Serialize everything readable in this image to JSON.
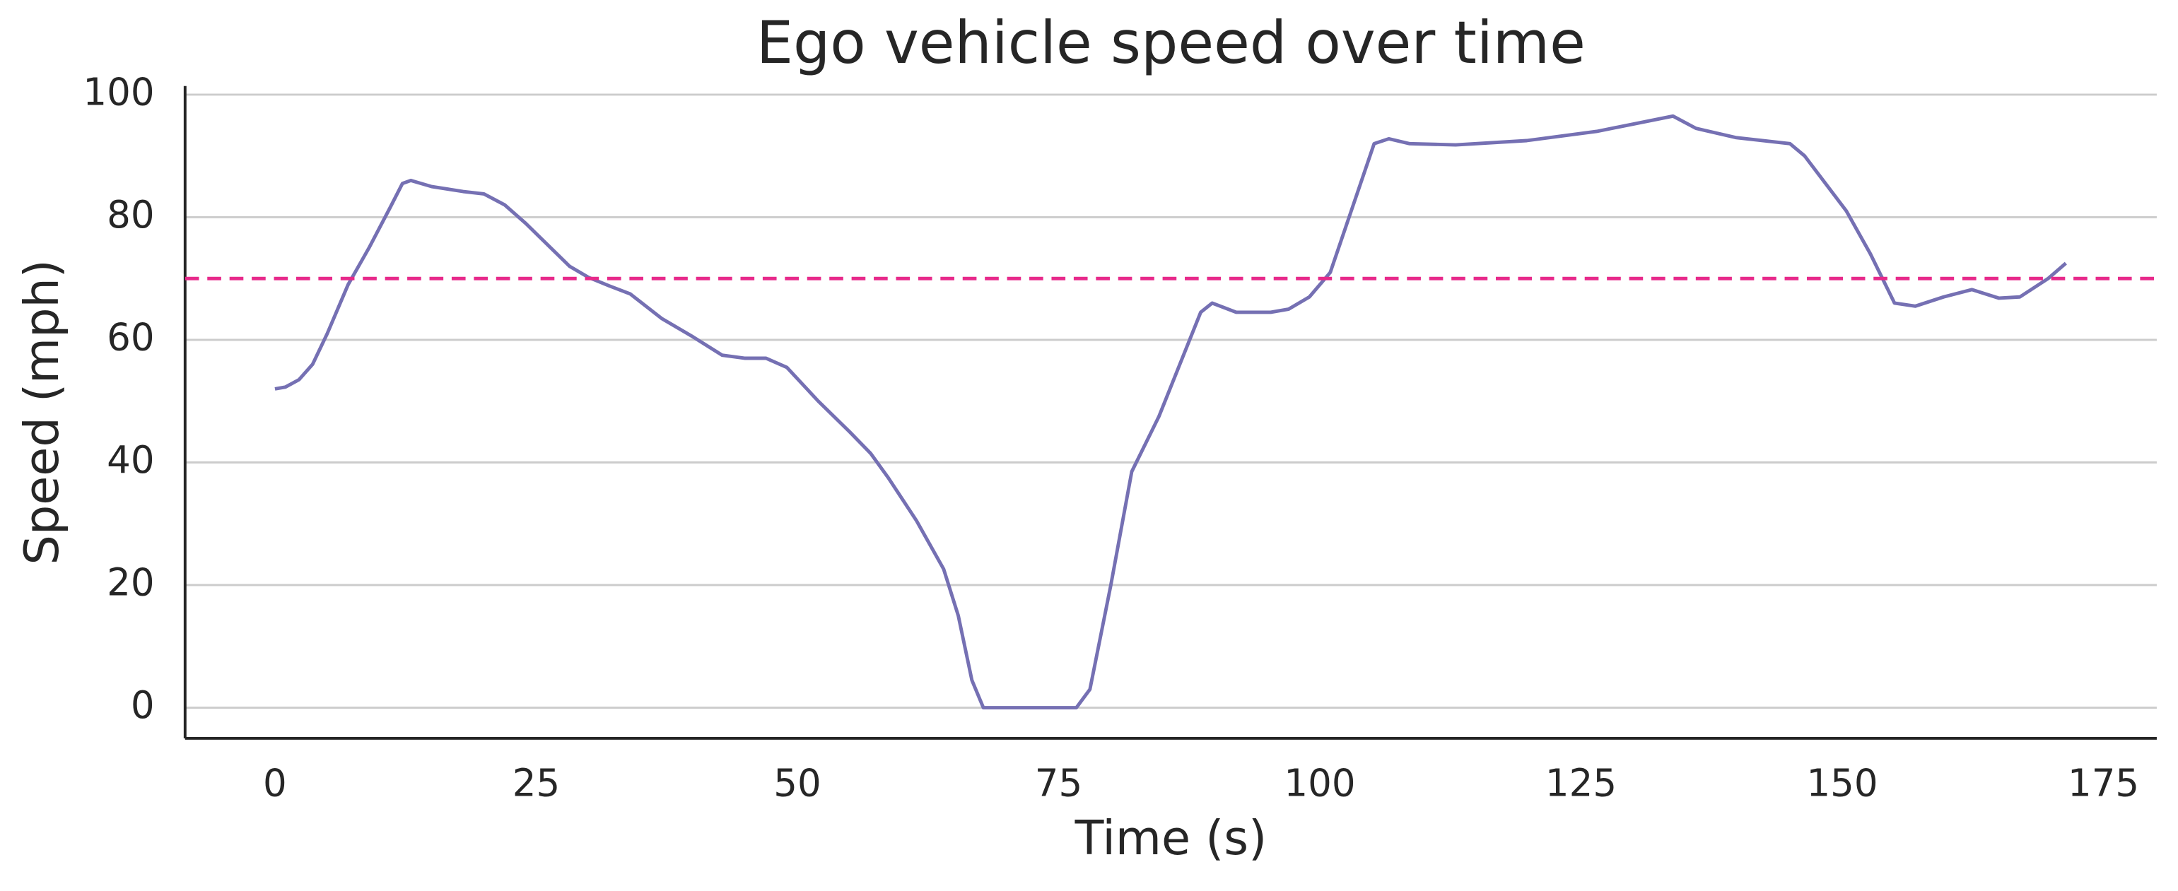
{
  "chart_data": {
    "type": "line",
    "title": "Ego vehicle speed over time",
    "xlabel": "Time (s)",
    "ylabel": "Speed (mph)",
    "x": [
      0,
      1,
      2.3,
      3.6,
      5,
      7,
      9,
      11,
      12.2,
      13,
      15,
      18,
      20,
      22,
      24,
      27,
      28.2,
      30,
      32,
      34,
      37,
      40,
      42.8,
      45,
      47,
      49,
      52,
      55,
      57,
      58.7,
      61.4,
      64,
      65.4,
      66.7,
      67.8,
      72,
      76.7,
      78,
      80,
      82,
      84.6,
      88.6,
      89.7,
      92,
      95.3,
      97,
      99,
      101,
      105.2,
      106.6,
      108.6,
      113,
      119.8,
      126.5,
      133.8,
      136,
      139.8,
      145,
      146.4,
      150.4,
      152.7,
      155,
      157,
      159.7,
      162.4,
      165,
      167,
      169.7,
      171.4
    ],
    "series": [
      {
        "color": "#7570b3",
        "values": [
          52,
          52.3,
          53.5,
          56,
          61,
          69,
          75,
          81.5,
          85.5,
          86,
          85,
          84.2,
          83.8,
          82,
          79,
          74,
          72,
          70.2,
          68.8,
          67.5,
          63.5,
          60.5,
          57.5,
          57,
          57,
          55.5,
          50,
          45,
          41.5,
          37.5,
          30.5,
          22.6,
          15,
          4.5,
          0,
          0,
          0,
          3,
          20,
          38.5,
          47.5,
          64.5,
          66,
          64.5,
          64.5,
          65,
          67,
          71,
          92,
          92.8,
          92,
          91.8,
          92.5,
          94,
          96.5,
          94.5,
          93,
          92,
          90,
          81,
          74,
          66,
          65.5,
          67,
          68.2,
          66.8,
          67,
          70,
          72.5
        ]
      }
    ],
    "hline": {
      "value": 70,
      "color": "#e7298a"
    },
    "xlim": [
      -8.6,
      180.1
    ],
    "ylim": [
      -5,
      101.4
    ],
    "xticks": [
      0,
      25,
      50,
      75,
      100,
      125,
      150,
      175
    ],
    "yticks": [
      0,
      20,
      40,
      60,
      80,
      100
    ],
    "grid": true
  }
}
